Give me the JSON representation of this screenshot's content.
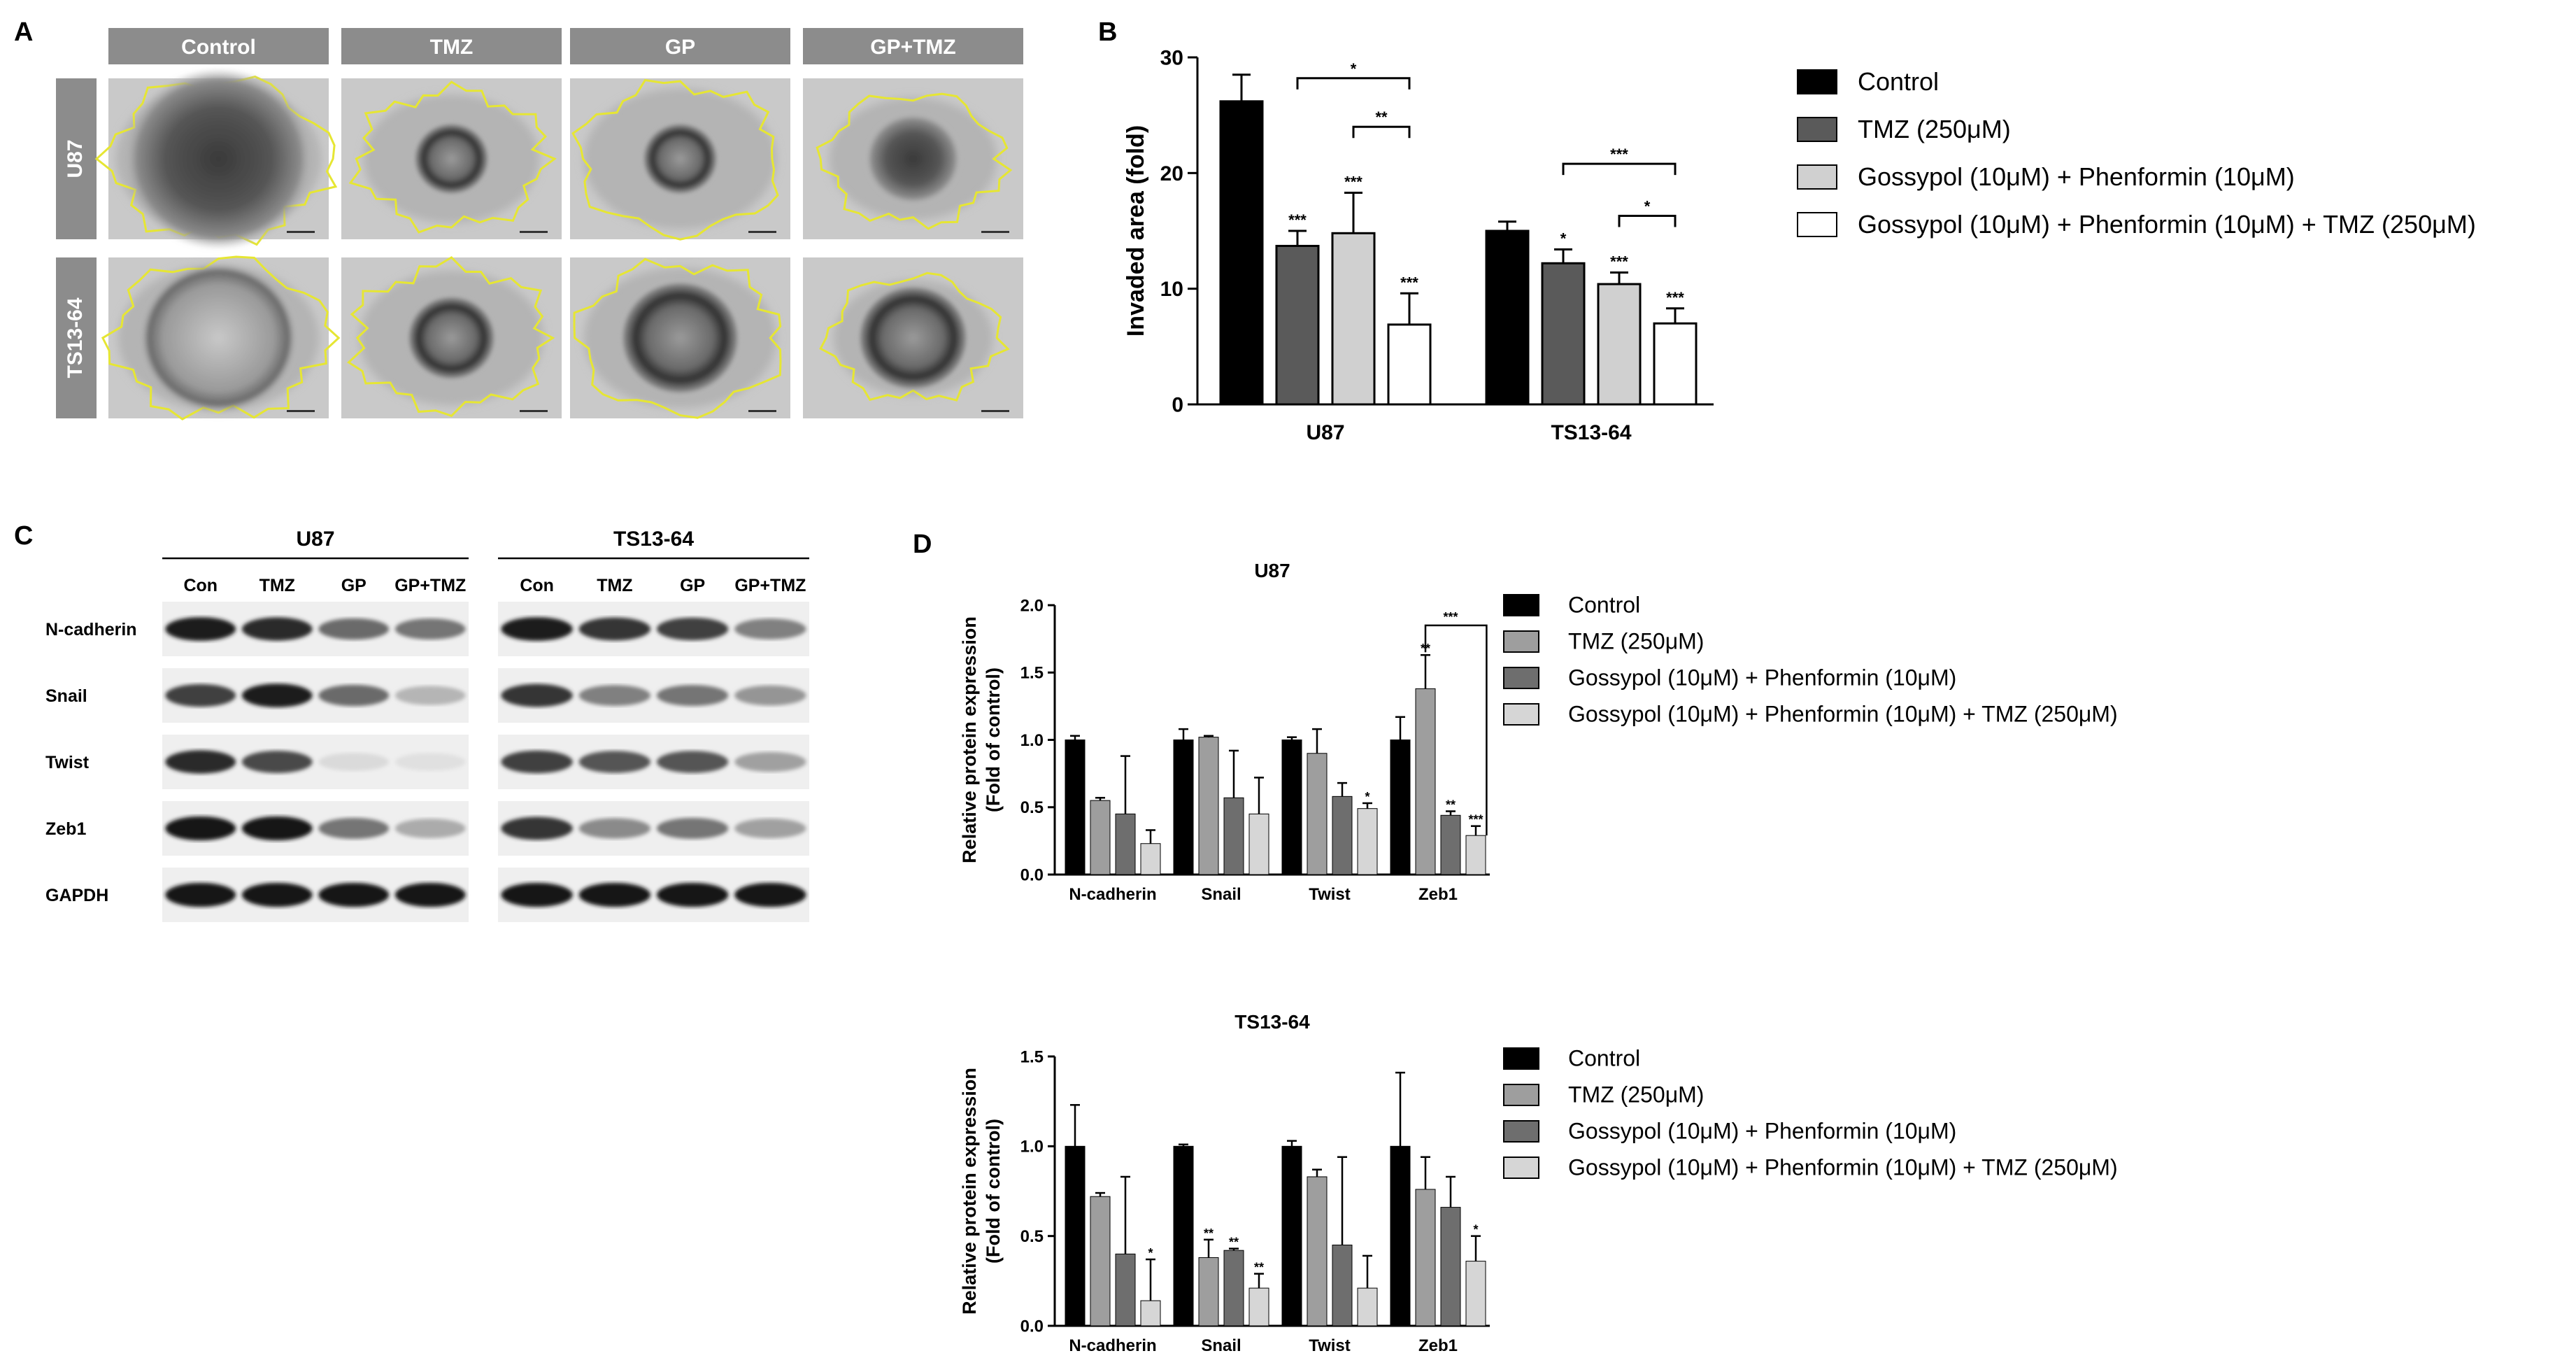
{
  "panel_letters": [
    "A",
    "B",
    "C",
    "D"
  ],
  "panelA": {
    "columns": [
      "Control",
      "TMZ",
      "GP",
      "GP+TMZ"
    ],
    "rows": [
      "U87",
      "TS13-64"
    ]
  },
  "panelC": {
    "groups": [
      {
        "title": "U87",
        "lanes": [
          "Con",
          "TMZ",
          "GP",
          "GP+TMZ"
        ]
      },
      {
        "title": "TS13-64",
        "lanes": [
          "Con",
          "TMZ",
          "GP",
          "GP+TMZ"
        ]
      }
    ],
    "proteins": [
      "N-cadherin",
      "Snail",
      "Twist",
      "Zeb1",
      "GAPDH"
    ],
    "band_intensity": {
      "U87": [
        [
          0.95,
          0.9,
          0.6,
          0.55
        ],
        [
          0.8,
          0.95,
          0.6,
          0.25
        ],
        [
          0.9,
          0.75,
          0.08,
          0.05
        ],
        [
          1.0,
          1.0,
          0.55,
          0.3
        ],
        [
          1.0,
          1.0,
          1.0,
          1.0
        ]
      ],
      "TS13-64": [
        [
          0.95,
          0.85,
          0.8,
          0.5
        ],
        [
          0.85,
          0.5,
          0.55,
          0.4
        ],
        [
          0.8,
          0.7,
          0.7,
          0.35
        ],
        [
          0.85,
          0.45,
          0.55,
          0.35
        ],
        [
          1.0,
          1.0,
          1.0,
          1.0
        ]
      ]
    }
  },
  "chart_data": [
    {
      "id": "B",
      "type": "bar",
      "title": "",
      "ylabel": "Invaded area (fold)",
      "xlabel": "",
      "ylim": [
        0,
        30
      ],
      "yticks": [
        "0",
        "10",
        "20",
        "30"
      ],
      "categories": [
        "U87",
        "TS13-64"
      ],
      "legend": [
        "Control",
        "TMZ (250μM)",
        "Gossypol (10μM) + Phenformin (10μM)",
        "Gossypol (10μM) + Phenformin (10μM) + TMZ (250μM)"
      ],
      "colors": [
        "#000000",
        "#5a5a5a",
        "#d0d0d0",
        "#ffffff"
      ],
      "values": [
        [
          26.2,
          13.7,
          14.8,
          6.9
        ],
        [
          15.0,
          12.2,
          10.4,
          7.0
        ]
      ],
      "errors": [
        [
          2.3,
          1.3,
          3.5,
          2.7
        ],
        [
          0.8,
          1.2,
          1.0,
          1.3
        ]
      ],
      "bar_stars": [
        [
          "",
          "***",
          "***",
          "***"
        ],
        [
          "",
          "*",
          "***",
          "***"
        ]
      ],
      "brackets": [
        {
          "group": 0,
          "from": 1,
          "to": 3,
          "label": "*",
          "y": 28.2
        },
        {
          "group": 0,
          "from": 2,
          "to": 3,
          "label": "**",
          "y": 24.0
        },
        {
          "group": 1,
          "from": 1,
          "to": 3,
          "label": "***",
          "y": 20.8
        },
        {
          "group": 1,
          "from": 2,
          "to": 3,
          "label": "*",
          "y": 16.3
        }
      ]
    },
    {
      "id": "D-U87",
      "type": "bar",
      "title": "U87",
      "ylabel": "Relative protein expression",
      "ylabel2": "(Fold of control)",
      "xlabel": "",
      "ylim": [
        0,
        2.0
      ],
      "yticks": [
        "0.0",
        "0.5",
        "1.0",
        "1.5",
        "2.0"
      ],
      "categories": [
        "N-cadherin",
        "Snail",
        "Twist",
        "Zeb1"
      ],
      "legend": [
        "Control",
        "TMZ (250μM)",
        "Gossypol (10μM) + Phenformin (10μM)",
        "Gossypol (10μM) + Phenformin (10μM) + TMZ (250μM)"
      ],
      "colors": [
        "#000000",
        "#9e9e9e",
        "#6e6e6e",
        "#d6d6d6"
      ],
      "values": [
        [
          1.0,
          0.55,
          0.45,
          0.23
        ],
        [
          1.0,
          1.02,
          0.57,
          0.45
        ],
        [
          1.0,
          0.9,
          0.58,
          0.49
        ],
        [
          1.0,
          1.38,
          0.44,
          0.29
        ]
      ],
      "errors": [
        [
          0.03,
          0.02,
          0.43,
          0.1
        ],
        [
          0.08,
          0.01,
          0.35,
          0.27
        ],
        [
          0.02,
          0.18,
          0.1,
          0.04
        ],
        [
          0.17,
          0.25,
          0.03,
          0.07
        ]
      ],
      "bar_stars": [
        [
          "",
          "",
          "",
          ""
        ],
        [
          "",
          "",
          "",
          ""
        ],
        [
          "",
          "",
          "",
          "*"
        ],
        [
          "",
          "**",
          "**",
          "***"
        ]
      ],
      "brackets": [
        {
          "group": 3,
          "from": 1,
          "to": 3,
          "label": "***",
          "y": 1.85,
          "open_end": true
        }
      ]
    },
    {
      "id": "D-TS13-64",
      "type": "bar",
      "title": "TS13-64",
      "ylabel": "Relative protein expression",
      "ylabel2": "(Fold of control)",
      "xlabel": "",
      "ylim": [
        0,
        1.5
      ],
      "yticks": [
        "0.0",
        "0.5",
        "1.0",
        "1.5"
      ],
      "categories": [
        "N-cadherin",
        "Snail",
        "Twist",
        "Zeb1"
      ],
      "legend": [
        "Control",
        "TMZ (250μM)",
        "Gossypol (10μM) + Phenformin (10μM)",
        "Gossypol (10μM) + Phenformin (10μM) + TMZ (250μM)"
      ],
      "colors": [
        "#000000",
        "#9e9e9e",
        "#6e6e6e",
        "#d6d6d6"
      ],
      "values": [
        [
          1.0,
          0.72,
          0.4,
          0.14
        ],
        [
          1.0,
          0.38,
          0.42,
          0.21
        ],
        [
          1.0,
          0.83,
          0.45,
          0.21
        ],
        [
          1.0,
          0.76,
          0.66,
          0.36
        ]
      ],
      "errors": [
        [
          0.23,
          0.02,
          0.43,
          0.23
        ],
        [
          0.01,
          0.1,
          0.01,
          0.08
        ],
        [
          0.03,
          0.04,
          0.49,
          0.18
        ],
        [
          0.41,
          0.18,
          0.17,
          0.14
        ]
      ],
      "bar_stars": [
        [
          "",
          "",
          "",
          "*"
        ],
        [
          "",
          "**",
          "**",
          "**"
        ],
        [
          "",
          "",
          "",
          ""
        ],
        [
          "",
          "",
          "",
          "*"
        ]
      ],
      "brackets": []
    }
  ]
}
